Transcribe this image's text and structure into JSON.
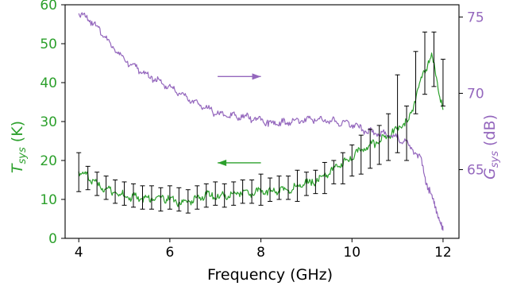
{
  "chart_data": {
    "type": "line",
    "xlabel": "Frequency (GHz)",
    "ylabel_left": {
      "main": "T",
      "sub": "sys",
      "unit": " (K)"
    },
    "ylabel_right": {
      "main": "G",
      "sub": "sys",
      "unit": " (dB)"
    },
    "xlim": [
      3.7,
      12.35
    ],
    "ylim_left": [
      0,
      60
    ],
    "ylim_right": [
      60.5,
      75.8
    ],
    "x_ticks": [
      4,
      6,
      8,
      10,
      12
    ],
    "y_left_ticks": [
      0,
      10,
      20,
      30,
      40,
      50,
      60
    ],
    "y_right_ticks": [
      65,
      70,
      75
    ],
    "grid": false,
    "colors": {
      "tsys": "#2ca02c",
      "gsys": "#9467bd",
      "errorbar": "#000000"
    },
    "series": [
      {
        "axis": "left",
        "color": "#2ca02c",
        "x": [
          4.0,
          4.25,
          4.5,
          4.75,
          5.0,
          5.25,
          5.5,
          5.75,
          6.0,
          6.25,
          6.5,
          6.75,
          7.0,
          7.25,
          7.5,
          7.75,
          8.0,
          8.25,
          8.5,
          8.75,
          9.0,
          9.25,
          9.5,
          9.75,
          10.0,
          10.25,
          10.5,
          10.75,
          11.0,
          11.25,
          11.5,
          11.75,
          12.0
        ],
        "values": [
          17,
          15.5,
          13,
          12,
          11,
          10.5,
          10,
          10.5,
          10,
          9,
          10,
          11,
          11,
          11,
          12,
          11.5,
          12,
          12,
          12.5,
          13,
          14,
          15,
          17,
          19,
          21,
          23,
          24.5,
          26,
          28,
          30,
          40,
          47,
          33
        ]
      },
      {
        "axis": "right",
        "color": "#9467bd",
        "x": [
          4.0,
          4.25,
          4.5,
          4.75,
          5.0,
          5.25,
          5.5,
          5.75,
          6.0,
          6.25,
          6.5,
          6.75,
          7.0,
          7.25,
          7.5,
          7.75,
          8.0,
          8.25,
          8.5,
          8.75,
          9.0,
          9.25,
          9.5,
          9.75,
          10.0,
          10.25,
          10.5,
          10.75,
          11.0,
          11.25,
          11.5,
          11.65,
          11.8,
          11.95,
          12.0
        ],
        "values": [
          75.3,
          74.8,
          74.0,
          73.0,
          72.2,
          71.7,
          71.2,
          70.8,
          70.4,
          70.0,
          69.5,
          69.1,
          68.7,
          68.6,
          68.5,
          68.4,
          68.2,
          68.0,
          68.1,
          68.2,
          68.3,
          68.3,
          68.2,
          68.1,
          68.0,
          67.6,
          67.4,
          67.3,
          67.1,
          66.6,
          65.8,
          64.0,
          62.8,
          61.6,
          61.0
        ]
      }
    ],
    "errorbars": {
      "x": [
        4.0,
        4.2,
        4.4,
        4.6,
        4.8,
        5.0,
        5.2,
        5.4,
        5.6,
        5.8,
        6.0,
        6.2,
        6.4,
        6.6,
        6.8,
        7.0,
        7.2,
        7.4,
        7.6,
        7.8,
        8.0,
        8.2,
        8.4,
        8.6,
        8.8,
        9.0,
        9.2,
        9.4,
        9.6,
        9.8,
        10.0,
        10.2,
        10.4,
        10.6,
        10.8,
        11.0,
        11.2,
        11.4,
        11.6,
        11.8,
        12.0
      ],
      "y": [
        17,
        15.5,
        14,
        13,
        12,
        11.5,
        11,
        10.5,
        10.5,
        10,
        10.5,
        10,
        9.5,
        10.5,
        11,
        11.5,
        11,
        11.5,
        12,
        12,
        12.5,
        12.5,
        13,
        13,
        13.5,
        14,
        14.5,
        15.5,
        17,
        18,
        20,
        21.5,
        23,
        24,
        26,
        32,
        27,
        40,
        45,
        46,
        40
      ],
      "err": [
        5,
        3,
        3,
        3,
        3,
        3,
        3,
        3,
        3,
        3,
        3,
        3,
        3,
        3,
        3,
        3,
        3,
        3,
        3,
        3,
        4,
        3,
        3,
        3,
        4,
        3,
        3,
        4,
        3,
        4,
        4,
        5,
        5,
        5,
        6,
        10,
        7,
        8,
        8,
        7,
        6
      ]
    },
    "annotations": [
      {
        "type": "arrow",
        "direction": "right",
        "color": "#9467bd",
        "x_start": 7.05,
        "x_end": 8.0,
        "y_right": 71.1
      },
      {
        "type": "arrow",
        "direction": "left",
        "color": "#2ca02c",
        "x_start": 8.0,
        "x_end": 7.05,
        "y_left": 19.4
      }
    ]
  }
}
